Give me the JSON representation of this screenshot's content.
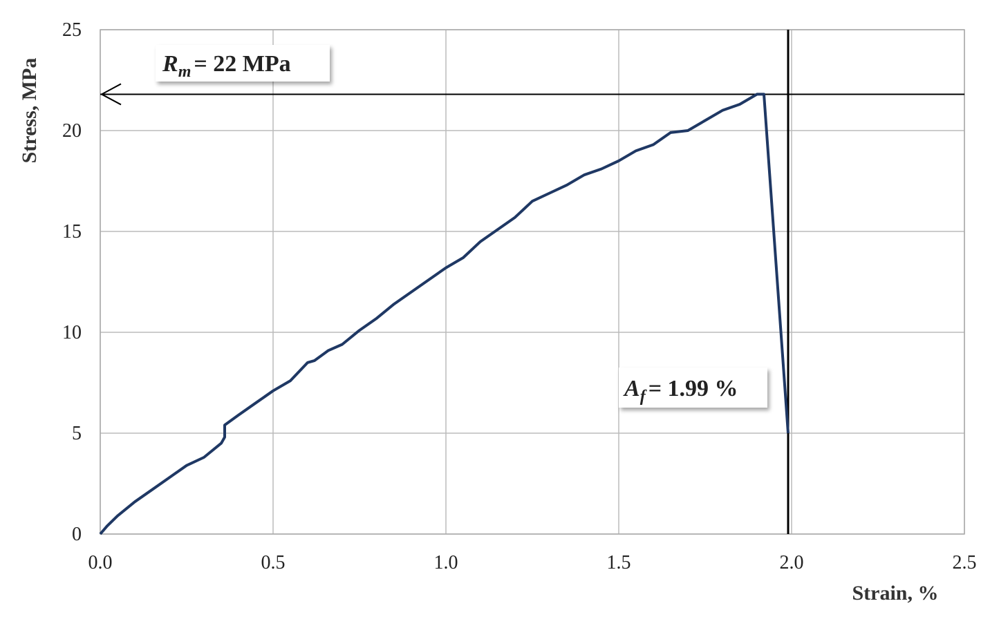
{
  "chart_data": {
    "type": "line",
    "x_label": "Strain, %",
    "y_label": "Stress, MPa",
    "x": [
      0,
      0.02,
      0.05,
      0.1,
      0.15,
      0.2,
      0.25,
      0.3,
      0.35,
      0.36,
      0.36,
      0.4,
      0.45,
      0.5,
      0.55,
      0.6,
      0.62,
      0.66,
      0.7,
      0.75,
      0.8,
      0.85,
      0.9,
      0.95,
      1.0,
      1.05,
      1.1,
      1.15,
      1.2,
      1.25,
      1.3,
      1.35,
      1.4,
      1.45,
      1.5,
      1.55,
      1.6,
      1.65,
      1.7,
      1.75,
      1.8,
      1.85,
      1.9,
      1.92,
      1.99
    ],
    "series": [
      {
        "color": "#1f3864",
        "values": [
          0,
          0.4,
          0.9,
          1.6,
          2.2,
          2.8,
          3.4,
          3.8,
          4.5,
          4.8,
          5.4,
          5.9,
          6.5,
          7.1,
          7.6,
          8.5,
          8.6,
          9.1,
          9.4,
          10.1,
          10.7,
          11.4,
          12.0,
          12.6,
          13.2,
          13.7,
          14.5,
          15.1,
          15.7,
          16.5,
          16.9,
          17.3,
          17.8,
          18.1,
          18.5,
          19.0,
          19.3,
          19.9,
          20.0,
          20.5,
          21.0,
          21.3,
          21.8,
          21.8,
          5.0
        ]
      }
    ],
    "xlim": [
      0,
      2.5
    ],
    "xticks": [
      {
        "value": 0,
        "label": "0.0"
      },
      0.5,
      {
        "value": 1,
        "label": "1.0"
      },
      1.5,
      {
        "value": 2,
        "label": "2.0"
      },
      2.5
    ],
    "ylim": [
      0,
      25
    ],
    "yticks": [
      0,
      5,
      10,
      15,
      20,
      25
    ],
    "grid": true,
    "hline": 21.8,
    "vline": 1.99,
    "annotations": [
      {
        "parts": [
          {
            "text": "R",
            "italic": true
          },
          {
            "text": "m",
            "italic": true,
            "sub": true
          },
          {
            "text": "=  22 MPa"
          }
        ]
      },
      {
        "parts": [
          {
            "text": "A",
            "italic": true
          },
          {
            "text": "f",
            "italic": true,
            "sub": true
          },
          {
            "text": "= 1.99 %"
          }
        ]
      }
    ]
  }
}
